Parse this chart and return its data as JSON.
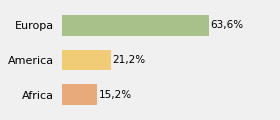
{
  "categories": [
    "Europa",
    "America",
    "Africa"
  ],
  "values": [
    63.6,
    21.2,
    15.2
  ],
  "labels": [
    "63,6%",
    "21,2%",
    "15,2%"
  ],
  "bar_colors": [
    "#a8c08a",
    "#f0cc76",
    "#e8aa7a"
  ],
  "background_color": "#f0f0f0",
  "xlim": [
    0,
    80
  ],
  "bar_height": 0.6,
  "label_fontsize": 7.5,
  "tick_fontsize": 8
}
